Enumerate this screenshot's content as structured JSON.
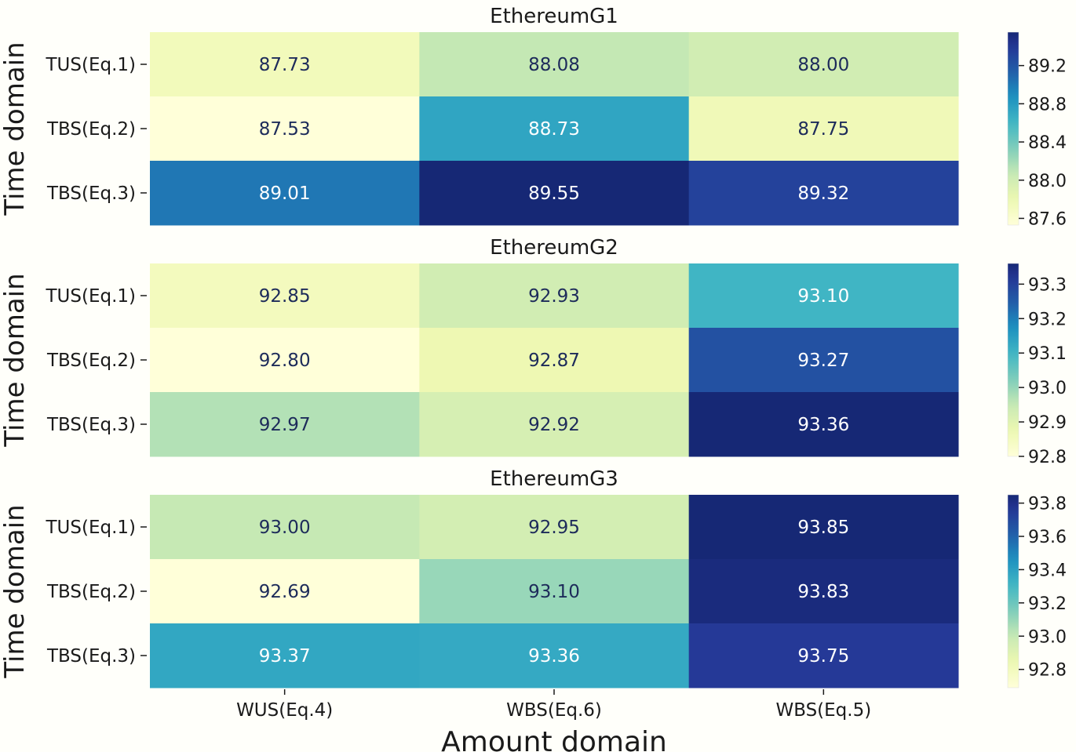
{
  "chart_data": {
    "type": "heatmap",
    "colormap": "YlGnBu",
    "xlabel": "Amount domain",
    "ylabel": "Time domain",
    "row_labels": [
      "TUS(Eq.1)",
      "TBS(Eq.2)",
      "TBS(Eq.3)"
    ],
    "col_labels": [
      "WUS(Eq.4)",
      "WBS(Eq.6)",
      "WBS(Eq.5)"
    ],
    "panels": [
      {
        "title": "EthereumG1",
        "values": [
          [
            87.73,
            88.08,
            88.0
          ],
          [
            87.53,
            88.73,
            87.75
          ],
          [
            89.01,
            89.55,
            89.32
          ]
        ],
        "colorbar": {
          "range": [
            87.53,
            89.55
          ],
          "ticks": [
            "87.6",
            "88.0",
            "88.4",
            "88.8",
            "89.2"
          ]
        }
      },
      {
        "title": "EthereumG2",
        "values": [
          [
            92.85,
            92.93,
            93.1
          ],
          [
            92.8,
            92.87,
            93.27
          ],
          [
            92.97,
            92.92,
            93.36
          ]
        ],
        "colorbar": {
          "range": [
            92.8,
            93.36
          ],
          "ticks": [
            "92.8",
            "92.9",
            "93.0",
            "93.1",
            "93.2",
            "93.3"
          ]
        }
      },
      {
        "title": "EthereumG3",
        "values": [
          [
            93.0,
            92.95,
            93.85
          ],
          [
            92.69,
            93.1,
            93.83
          ],
          [
            93.37,
            93.36,
            93.75
          ]
        ],
        "colorbar": {
          "range": [
            92.69,
            93.85
          ],
          "ticks": [
            "92.8",
            "93.0",
            "93.2",
            "93.4",
            "93.6",
            "93.8"
          ]
        }
      }
    ]
  }
}
